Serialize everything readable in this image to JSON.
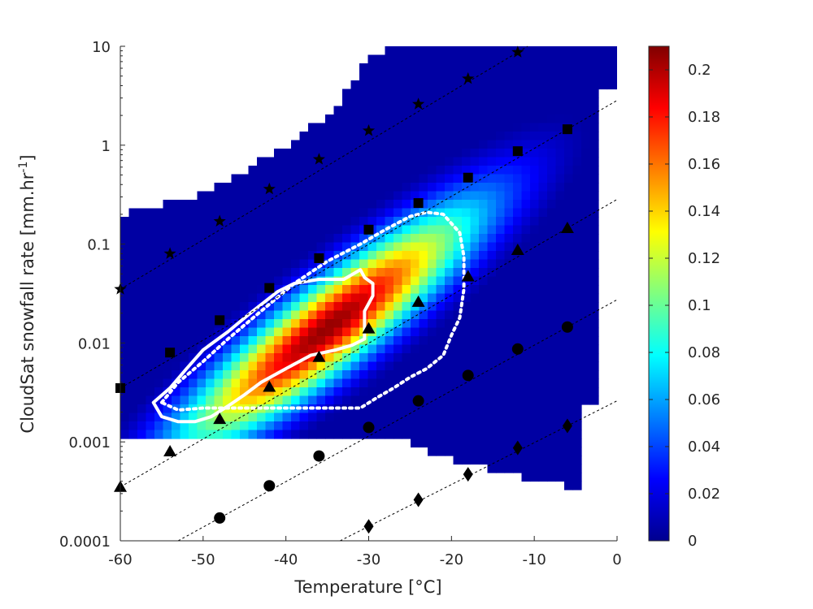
{
  "chart_data": {
    "type": "heatmap",
    "title": "",
    "xlabel": "Temperature [°C]",
    "ylabel_main": "CloudSat snowfall rate [mm.hr",
    "ylabel_sup": "-1",
    "ylabel_end": "]",
    "xlim": [
      -60,
      0
    ],
    "ylim": [
      0.0001,
      10
    ],
    "y_scale": "log",
    "grid": false,
    "x_ticks": [
      -60,
      -50,
      -40,
      -30,
      -20,
      -10,
      0
    ],
    "x_tick_labels": [
      "-60",
      "-50",
      "-40",
      "-30",
      "-20",
      "-10",
      "0"
    ],
    "y_ticks": [
      0.0001,
      0.001,
      0.01,
      0.1,
      1,
      10
    ],
    "y_tick_labels": [
      "0.0001",
      "0.001",
      "0.01",
      "0.1",
      "1",
      "10"
    ],
    "colormap": "jet",
    "colorbar": {
      "min": 0,
      "max": 0.21,
      "ticks": [
        0,
        0.02,
        0.04,
        0.06,
        0.08,
        0.1,
        0.12,
        0.14,
        0.16,
        0.18,
        0.2
      ],
      "tick_labels": [
        "0",
        "0.02",
        "0.04",
        "0.06",
        "0.08",
        "0.1",
        "0.12",
        "0.14",
        "0.16",
        "0.18",
        "0.2"
      ]
    },
    "density_peak": {
      "temperature": -35,
      "snowfall_rate": 0.014,
      "value": 0.21
    },
    "reference_lines": [
      {
        "marker": "star",
        "x": [
          -60,
          -54,
          -48,
          -42,
          -36,
          -30,
          -24,
          -18,
          -12
        ],
        "y": [
          0.035,
          0.08,
          0.17,
          0.36,
          0.72,
          1.4,
          2.6,
          4.7,
          8.7
        ]
      },
      {
        "marker": "square",
        "x": [
          -60,
          -54,
          -48,
          -42,
          -36,
          -30,
          -24,
          -18,
          -12,
          -6
        ],
        "y": [
          0.0035,
          0.008,
          0.017,
          0.036,
          0.072,
          0.14,
          0.26,
          0.47,
          0.87,
          1.45
        ]
      },
      {
        "marker": "triangle",
        "x": [
          -60,
          -54,
          -48,
          -42,
          -36,
          -30,
          -24,
          -18,
          -12,
          -6
        ],
        "y": [
          0.00035,
          0.0008,
          0.0017,
          0.0036,
          0.0072,
          0.014,
          0.026,
          0.047,
          0.087,
          0.145
        ]
      },
      {
        "marker": "circle",
        "x": [
          -48,
          -42,
          -36,
          -30,
          -24,
          -18,
          -12,
          -6
        ],
        "y": [
          0.00017,
          0.00036,
          0.00072,
          0.0014,
          0.0026,
          0.0047,
          0.0087,
          0.0145
        ]
      },
      {
        "marker": "diamond",
        "x": [
          -30,
          -24,
          -18,
          -12,
          -6
        ],
        "y": [
          0.00014,
          0.00026,
          0.00047,
          0.00087,
          0.00145
        ]
      }
    ],
    "contours": [
      {
        "style": "solid",
        "color": "#ffffff",
        "points": [
          [
            -56,
            0.0025
          ],
          [
            -54,
            0.0035
          ],
          [
            -52,
            0.0055
          ],
          [
            -50,
            0.0085
          ],
          [
            -47,
            0.013
          ],
          [
            -44,
            0.021
          ],
          [
            -41,
            0.033
          ],
          [
            -39,
            0.04
          ],
          [
            -36,
            0.044
          ],
          [
            -33,
            0.044
          ],
          [
            -31,
            0.055
          ],
          [
            -30.5,
            0.046
          ],
          [
            -29.5,
            0.04
          ],
          [
            -29.5,
            0.03
          ],
          [
            -30.5,
            0.021
          ],
          [
            -30.5,
            0.011
          ],
          [
            -32,
            0.0095
          ],
          [
            -34,
            0.0085
          ],
          [
            -37,
            0.0075
          ],
          [
            -40,
            0.0055
          ],
          [
            -43,
            0.004
          ],
          [
            -45,
            0.003
          ],
          [
            -47,
            0.0023
          ],
          [
            -49,
            0.0018
          ],
          [
            -51,
            0.0016
          ],
          [
            -53,
            0.0016
          ],
          [
            -55,
            0.0018
          ],
          [
            -56,
            0.0025
          ]
        ]
      },
      {
        "style": "dotted",
        "color": "#ffffff",
        "points": [
          [
            -55,
            0.0025
          ],
          [
            -53,
            0.004
          ],
          [
            -50,
            0.0065
          ],
          [
            -47,
            0.011
          ],
          [
            -43,
            0.021
          ],
          [
            -39,
            0.04
          ],
          [
            -35,
            0.067
          ],
          [
            -31,
            0.1
          ],
          [
            -28,
            0.14
          ],
          [
            -25,
            0.19
          ],
          [
            -23,
            0.21
          ],
          [
            -21,
            0.2
          ],
          [
            -19,
            0.13
          ],
          [
            -18.5,
            0.075
          ],
          [
            -18.5,
            0.035
          ],
          [
            -19,
            0.018
          ],
          [
            -20,
            0.012
          ],
          [
            -21,
            0.0075
          ],
          [
            -23,
            0.0055
          ],
          [
            -25,
            0.0045
          ],
          [
            -27,
            0.0035
          ],
          [
            -29,
            0.0028
          ],
          [
            -31,
            0.0022
          ],
          [
            -35,
            0.0022
          ],
          [
            -40,
            0.0022
          ],
          [
            -45,
            0.0022
          ],
          [
            -50,
            0.0022
          ],
          [
            -53,
            0.0021
          ],
          [
            -55,
            0.0025
          ]
        ]
      }
    ]
  }
}
